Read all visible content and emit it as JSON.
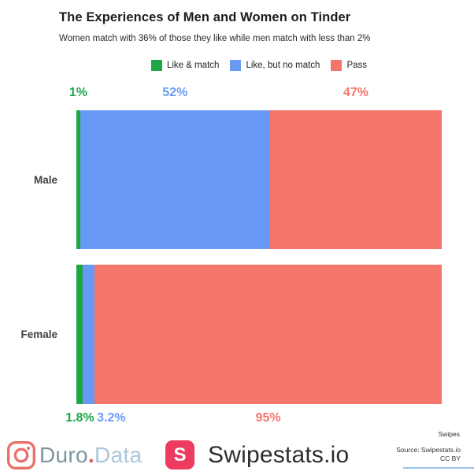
{
  "chart_data": {
    "type": "bar",
    "orientation": "horizontal",
    "stacked": true,
    "unit": "%",
    "title": "The Experiences of Men and Women on Tinder",
    "subtitle": "Women match with 36% of those they like while men match with less than 2%",
    "categories": [
      "Male",
      "Female"
    ],
    "series": [
      {
        "name": "Like & match",
        "color": "#1ea546",
        "values": [
          1,
          1.8
        ],
        "value_labels": [
          "1%",
          "1.8%"
        ]
      },
      {
        "name": "Like, but no match",
        "color": "#689af5",
        "values": [
          52,
          3.2
        ],
        "value_labels": [
          "52%",
          "3.2%"
        ]
      },
      {
        "name": "Pass",
        "color": "#f4756c",
        "values": [
          47,
          95
        ],
        "value_labels": [
          "47%",
          "95%"
        ]
      }
    ],
    "xlim": [
      0,
      100
    ],
    "grid": false,
    "legend_position": "top",
    "value_label_position": [
      "above-bar",
      "below-bar"
    ]
  },
  "footer": {
    "duro_data": {
      "icon": "camera-icon",
      "icon_color": "#e8706b",
      "text_duro": "Duro",
      "text_dot": ".",
      "text_data": "Data",
      "dot_color": "#dd564e",
      "duro_color": "#7e95a2",
      "data_color": "#a9c7da"
    },
    "swipestats": {
      "badge_letter": "S",
      "badge_color": "#ee3c60",
      "brand": "Swipestats.io"
    },
    "swipes_note": "Swipes",
    "source": "Source: Swipestats.io",
    "license": "CC BY"
  }
}
